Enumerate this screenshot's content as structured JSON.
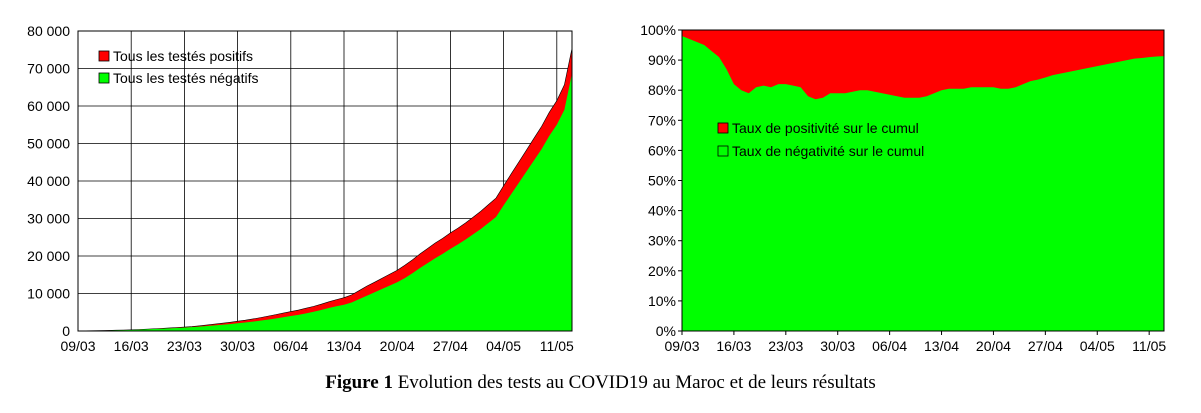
{
  "caption": {
    "label": "Figure 1",
    "text": " Evolution des tests au COVID19 au Maroc et de leurs résultats"
  },
  "colors": {
    "positive": "#ff0000",
    "negative": "#00ff00",
    "axis": "#000000"
  },
  "chart_data": [
    {
      "type": "area",
      "stacked": true,
      "title": "",
      "xlabel": "",
      "ylabel": "",
      "x": [
        "09/03",
        "10/03",
        "11/03",
        "12/03",
        "13/03",
        "14/03",
        "15/03",
        "16/03",
        "17/03",
        "18/03",
        "19/03",
        "20/03",
        "21/03",
        "22/03",
        "23/03",
        "24/03",
        "25/03",
        "26/03",
        "27/03",
        "28/03",
        "29/03",
        "30/03",
        "31/03",
        "01/04",
        "02/04",
        "03/04",
        "04/04",
        "05/04",
        "06/04",
        "07/04",
        "08/04",
        "09/04",
        "10/04",
        "11/04",
        "12/04",
        "13/04",
        "14/04",
        "15/04",
        "16/04",
        "17/04",
        "18/04",
        "19/04",
        "20/04",
        "21/04",
        "22/04",
        "23/04",
        "24/04",
        "25/04",
        "26/04",
        "27/04",
        "28/04",
        "29/04",
        "30/04",
        "01/05",
        "02/05",
        "03/05",
        "04/05",
        "05/05",
        "06/05",
        "07/05",
        "08/05",
        "09/05",
        "10/05",
        "11/05",
        "12/05",
        "13/05"
      ],
      "xticks": [
        "09/03",
        "16/03",
        "23/03",
        "30/03",
        "06/04",
        "13/04",
        "20/04",
        "27/04",
        "04/05",
        "11/05"
      ],
      "yticks": [
        "0",
        "10 000",
        "20 000",
        "30 000",
        "40 000",
        "50 000",
        "60 000",
        "70 000",
        "80 000"
      ],
      "ylim": [
        0,
        80000
      ],
      "grid": true,
      "legend": {
        "position": "top-left"
      },
      "series": [
        {
          "name": "Tous les testés positifs",
          "values": [
            3,
            4,
            5,
            7,
            11,
            17,
            29,
            38,
            51,
            63,
            77,
            97,
            115,
            134,
            143,
            170,
            225,
            275,
            345,
            402,
            479,
            556,
            617,
            708,
            791,
            919,
            1021,
            1113,
            1184,
            1275,
            1374,
            1448,
            1545,
            1661,
            1763,
            1888,
            2024,
            2283,
            2564,
            2685,
            2855,
            3046,
            3209,
            3446,
            3568,
            3758,
            3897,
            4065,
            4120,
            4252,
            4321,
            4423,
            4569,
            4729,
            4903,
            5053,
            5219,
            5408,
            5548,
            5711,
            5910,
            6063,
            6281,
            6418,
            6652,
            6741
          ]
        },
        {
          "name": "Tous les testés négatifs",
          "values": [
            50,
            60,
            80,
            100,
            140,
            190,
            230,
            275,
            340,
            430,
            520,
            600,
            690,
            800,
            900,
            1020,
            1170,
            1330,
            1500,
            1670,
            1850,
            2060,
            2270,
            2500,
            2780,
            3050,
            3350,
            3670,
            4000,
            4310,
            4700,
            5120,
            5610,
            6130,
            6600,
            7000,
            7600,
            8500,
            9400,
            10300,
            11200,
            12100,
            13000,
            14100,
            15400,
            16800,
            18100,
            19400,
            20600,
            21900,
            23100,
            24400,
            25800,
            27200,
            28800,
            30400,
            33500,
            36500,
            39500,
            42500,
            45500,
            48500,
            52000,
            55000,
            59000,
            68657
          ]
        }
      ]
    },
    {
      "type": "area",
      "stacked": true,
      "percent": true,
      "title": "",
      "xlabel": "",
      "ylabel": "",
      "xticks": [
        "09/03",
        "16/03",
        "23/03",
        "30/03",
        "06/04",
        "13/04",
        "20/04",
        "27/04",
        "04/05",
        "11/05"
      ],
      "yticks": [
        "0%",
        "10%",
        "20%",
        "30%",
        "40%",
        "50%",
        "60%",
        "70%",
        "80%",
        "90%",
        "100%"
      ],
      "ylim": [
        0,
        100
      ],
      "grid": false,
      "legend": {
        "position": "center-left"
      },
      "series": [
        {
          "name": "Taux de positivité sur le cumul",
          "values": [
            2.0,
            3.0,
            4.0,
            5.0,
            7.0,
            9.0,
            13.0,
            18.0,
            20.0,
            21.0,
            19.0,
            18.5,
            19.0,
            18.0,
            18.0,
            18.5,
            19.0,
            22.0,
            23.0,
            22.5,
            21.0,
            21.0,
            21.0,
            20.5,
            20.0,
            20.0,
            20.5,
            21.0,
            21.5,
            22.0,
            22.5,
            22.5,
            22.5,
            22.0,
            21.0,
            20.0,
            19.5,
            19.5,
            19.5,
            19.0,
            19.0,
            19.0,
            19.0,
            19.5,
            19.5,
            19.0,
            18.0,
            17.0,
            16.5,
            15.8,
            15.0,
            14.5,
            14.0,
            13.5,
            13.0,
            12.5,
            12.0,
            11.5,
            11.0,
            10.5,
            10.0,
            9.5,
            9.3,
            9.0,
            8.8,
            8.7
          ]
        },
        {
          "name": "Taux de négativité sur le cumul",
          "values": [
            98.0,
            97.0,
            96.0,
            95.0,
            93.0,
            91.0,
            87.0,
            82.0,
            80.0,
            79.0,
            81.0,
            81.5,
            81.0,
            82.0,
            82.0,
            81.5,
            81.0,
            78.0,
            77.0,
            77.5,
            79.0,
            79.0,
            79.0,
            79.5,
            80.0,
            80.0,
            79.5,
            79.0,
            78.5,
            78.0,
            77.5,
            77.5,
            77.5,
            78.0,
            79.0,
            80.0,
            80.5,
            80.5,
            80.5,
            81.0,
            81.0,
            81.0,
            81.0,
            80.5,
            80.5,
            81.0,
            82.0,
            83.0,
            83.5,
            84.2,
            85.0,
            85.5,
            86.0,
            86.5,
            87.0,
            87.5,
            88.0,
            88.5,
            89.0,
            89.5,
            90.0,
            90.5,
            90.7,
            91.0,
            91.2,
            91.3
          ]
        }
      ]
    }
  ]
}
